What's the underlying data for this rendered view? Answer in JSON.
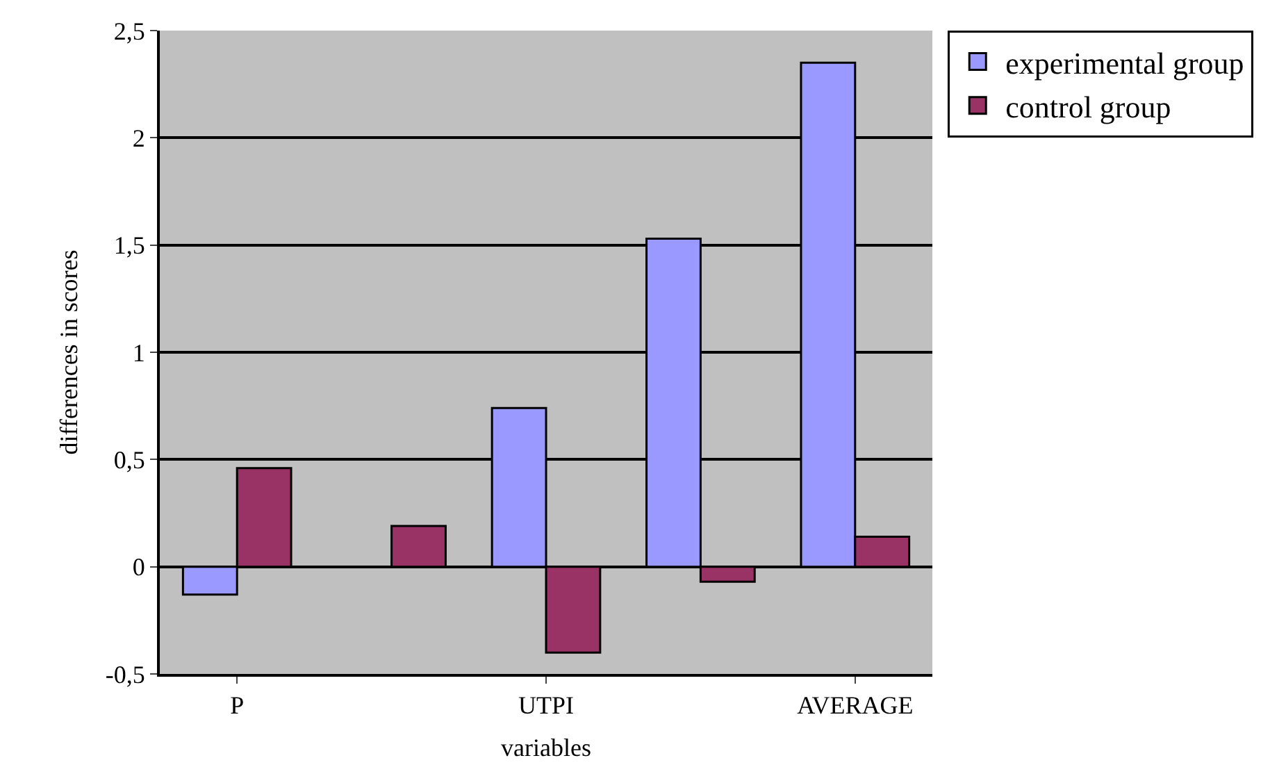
{
  "chart_data": {
    "type": "bar",
    "xlabel": "variables",
    "ylabel": "differences in scores",
    "categories": [
      "P",
      null,
      "UTPI",
      null,
      "AVERAGE"
    ],
    "series": [
      {
        "name": "experimental group",
        "color": "#9999ff",
        "values": [
          -0.13,
          0,
          0.74,
          1.53,
          2.35
        ]
      },
      {
        "name": "control group",
        "color": "#993366",
        "values": [
          0.46,
          0.19,
          -0.4,
          -0.07,
          0.14
        ]
      }
    ],
    "ylim": [
      -0.5,
      2.5
    ],
    "yticks": [
      {
        "value": -0.5,
        "label": "-0,5"
      },
      0,
      {
        "value": 0.5,
        "label": "0,5"
      },
      1,
      {
        "value": 1.5,
        "label": "1,5"
      },
      2,
      {
        "value": 2.5,
        "label": "2,5"
      }
    ],
    "grid": "y",
    "legend": "top right"
  }
}
